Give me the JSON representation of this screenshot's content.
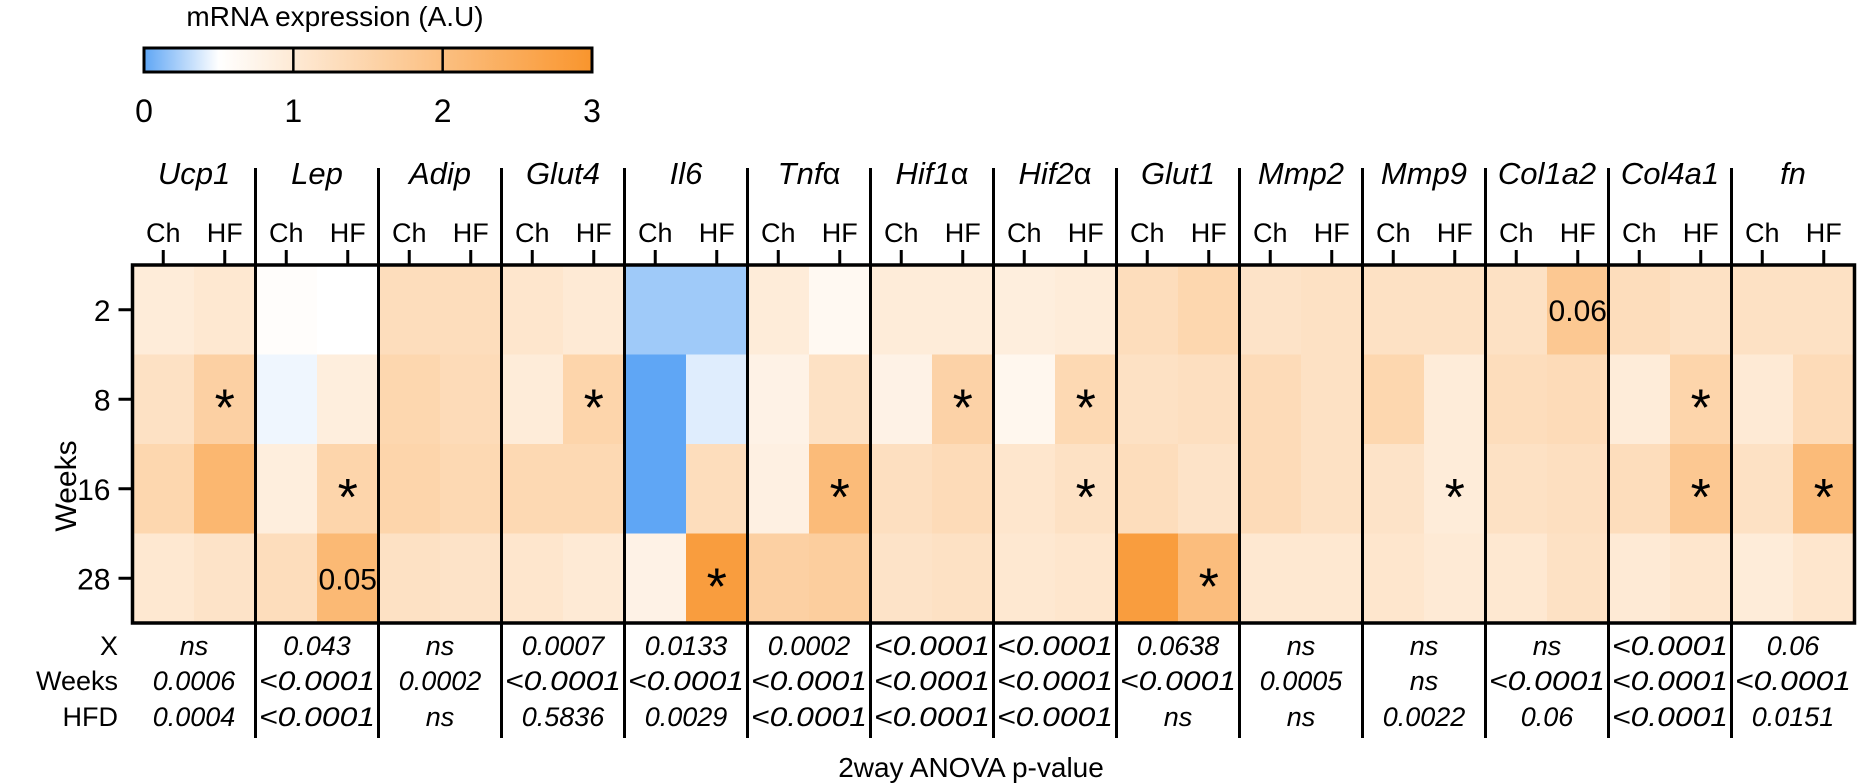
{
  "chart_data": {
    "type": "heatmap",
    "title": "mRNA expression (A.U)",
    "colorbar": {
      "min": 0,
      "max": 3,
      "midpoint": 0.5,
      "ticks": [
        "0",
        "1",
        "2",
        "3"
      ],
      "colors": {
        "low": "#5fa6f5",
        "mid": "#ffffff",
        "high": "#f9952d"
      }
    },
    "ylabel": "Weeks",
    "rows": [
      "2",
      "8",
      "16",
      "28"
    ],
    "sub_columns": [
      "Ch",
      "HF"
    ],
    "genes": [
      {
        "name": "Ucp1",
        "ital": "Ucp1",
        "sym": ""
      },
      {
        "name": "Lep",
        "ital": "Lep",
        "sym": ""
      },
      {
        "name": "Adip",
        "ital": "Adip",
        "sym": ""
      },
      {
        "name": "Glut4",
        "ital": "Glut4",
        "sym": ""
      },
      {
        "name": "Il6",
        "ital": "Il6",
        "sym": ""
      },
      {
        "name": "Tnfα",
        "ital": "Tnf",
        "sym": "α"
      },
      {
        "name": "Hif1α",
        "ital": "Hif1",
        "sym": "α"
      },
      {
        "name": "Hif2α",
        "ital": "Hif2",
        "sym": "α"
      },
      {
        "name": "Glut1",
        "ital": "Glut1",
        "sym": ""
      },
      {
        "name": "Mmp2",
        "ital": "Mmp2",
        "sym": ""
      },
      {
        "name": "Mmp9",
        "ital": "Mmp9",
        "sym": ""
      },
      {
        "name": "Col1a2",
        "ital": "Col1a2",
        "sym": ""
      },
      {
        "name": "Col4a1",
        "ital": "Col4a1",
        "sym": ""
      },
      {
        "name": "fn",
        "ital": "fn",
        "sym": ""
      }
    ],
    "values": [
      [
        0.95,
        1.05,
        0.55,
        0.5,
        1.3,
        1.3,
        1.1,
        1.0,
        0.2,
        0.2,
        0.95,
        0.65,
        0.95,
        0.95,
        0.9,
        0.95,
        1.3,
        1.45,
        1.15,
        1.2,
        1.2,
        1.2,
        1.2,
        1.8,
        1.3,
        1.2,
        1.2,
        1.2
      ],
      [
        1.2,
        1.6,
        0.45,
        0.9,
        1.45,
        1.35,
        0.95,
        1.5,
        0.0,
        0.4,
        0.8,
        1.2,
        0.8,
        1.55,
        0.7,
        1.4,
        1.2,
        1.25,
        1.35,
        1.2,
        1.45,
        0.95,
        1.3,
        1.35,
        0.95,
        1.5,
        1.0,
        1.35
      ],
      [
        1.45,
        2.2,
        0.9,
        1.5,
        1.5,
        1.4,
        1.4,
        1.4,
        0.0,
        1.3,
        0.85,
        2.1,
        1.25,
        1.35,
        1.1,
        1.2,
        1.3,
        1.15,
        1.35,
        1.2,
        1.15,
        0.95,
        1.2,
        1.25,
        1.3,
        1.8,
        1.2,
        2.1
      ],
      [
        1.05,
        1.15,
        1.3,
        2.15,
        1.2,
        1.15,
        1.1,
        1.0,
        0.8,
        2.8,
        1.6,
        1.65,
        1.15,
        1.2,
        1.05,
        1.1,
        2.8,
        2.05,
        1.05,
        1.05,
        1.1,
        1.0,
        1.05,
        1.2,
        1.0,
        1.1,
        0.95,
        1.1
      ]
    ],
    "annotations": [
      {
        "row": 1,
        "col": 1,
        "text": "*"
      },
      {
        "row": 1,
        "col": 7,
        "text": "*"
      },
      {
        "row": 1,
        "col": 13,
        "text": "*"
      },
      {
        "row": 1,
        "col": 15,
        "text": "*"
      },
      {
        "row": 1,
        "col": 25,
        "text": "*"
      },
      {
        "row": 2,
        "col": 3,
        "text": "*"
      },
      {
        "row": 2,
        "col": 11,
        "text": "*"
      },
      {
        "row": 2,
        "col": 15,
        "text": "*"
      },
      {
        "row": 2,
        "col": 21,
        "text": "*"
      },
      {
        "row": 2,
        "col": 25,
        "text": "*"
      },
      {
        "row": 2,
        "col": 27,
        "text": "*"
      },
      {
        "row": 3,
        "col": 9,
        "text": "*"
      },
      {
        "row": 3,
        "col": 17,
        "text": "*"
      },
      {
        "row": 0,
        "col": 23,
        "text": "0.06"
      },
      {
        "row": 3,
        "col": 3,
        "text": "0.05"
      }
    ],
    "anova": {
      "title": "2way ANOVA p-value",
      "rows": [
        {
          "label": "X",
          "values": [
            "ns",
            "0.043",
            "ns",
            "0.0007",
            "0.0133",
            "0.0002",
            "<0.0001",
            "<0.0001",
            "0.0638",
            "ns",
            "ns",
            "ns",
            "<0.0001",
            "0.06"
          ]
        },
        {
          "label": "Weeks",
          "values": [
            "0.0006",
            "<0.0001",
            "0.0002",
            "<0.0001",
            "<0.0001",
            "<0.0001",
            "<0.0001",
            "<0.0001",
            "<0.0001",
            "0.0005",
            "ns",
            "<0.0001",
            "<0.0001",
            "<0.0001"
          ]
        },
        {
          "label": "HFD",
          "values": [
            "0.0004",
            "<0.0001",
            "ns",
            "0.5836",
            "0.0029",
            "<0.0001",
            "<0.0001",
            "<0.0001",
            "ns",
            "ns",
            "0.0022",
            "0.06",
            "<0.0001",
            "0.0151"
          ]
        }
      ]
    }
  }
}
